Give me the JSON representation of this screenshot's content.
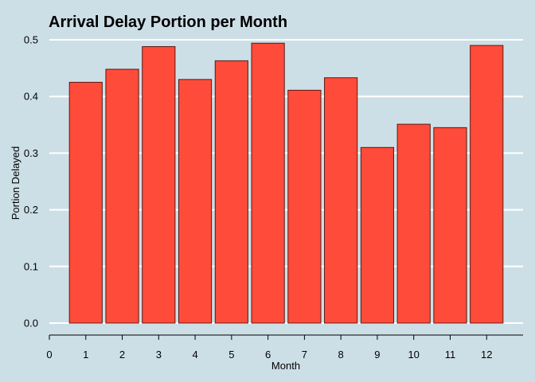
{
  "chart_data": {
    "type": "bar",
    "title": "Arrival Delay Portion per Month",
    "xlabel": "Month",
    "ylabel": "Portion Delayed",
    "categories": [
      "1",
      "2",
      "3",
      "4",
      "5",
      "6",
      "7",
      "8",
      "9",
      "10",
      "11",
      "12"
    ],
    "values": [
      0.425,
      0.448,
      0.488,
      0.43,
      0.463,
      0.494,
      0.411,
      0.433,
      0.31,
      0.351,
      0.345,
      0.49
    ],
    "x_ticks": [
      "0",
      "1",
      "2",
      "3",
      "4",
      "5",
      "6",
      "7",
      "8",
      "9",
      "10",
      "11",
      "12"
    ],
    "y_ticks": [
      "0.0",
      "0.1",
      "0.2",
      "0.3",
      "0.4",
      "0.5"
    ],
    "ylim": [
      0,
      0.5
    ],
    "xlim": [
      0,
      13
    ],
    "grid": "horizontal",
    "legend": "none",
    "colors": {
      "background": "#cddfe6",
      "bar_fill": "#ff4b3a",
      "bar_stroke": "#5a1a14",
      "grid": "#ffffff",
      "axis": "#000000"
    }
  }
}
